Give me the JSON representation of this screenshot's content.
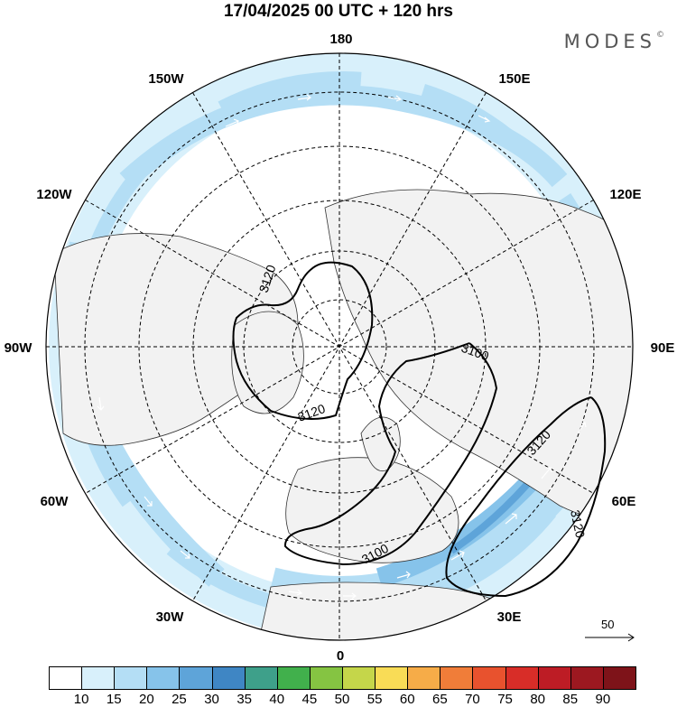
{
  "title": "17/04/2025  00 UTC  + 120 hrs",
  "brand": {
    "name": "MODES",
    "mark": "©"
  },
  "longitude_labels": [
    "180",
    "150E",
    "120E",
    "90E",
    "60E",
    "30E",
    "0",
    "30W",
    "60W",
    "90W",
    "120W",
    "150W"
  ],
  "contour_labels": [
    "3120",
    "3120",
    "3100",
    "3100",
    "3120",
    "3120"
  ],
  "vector_reference": {
    "value": "50"
  },
  "legend": {
    "ticks": [
      "10",
      "15",
      "20",
      "25",
      "30",
      "35",
      "40",
      "45",
      "50",
      "55",
      "60",
      "65",
      "70",
      "75",
      "80",
      "85",
      "90"
    ],
    "colors": [
      "#ffffff",
      "#d8f0fb",
      "#b4def5",
      "#86c3ea",
      "#5ea4d9",
      "#3f86c4",
      "#3ea08a",
      "#41b04c",
      "#85c442",
      "#c5d64a",
      "#f9dc56",
      "#f6ac48",
      "#f07d39",
      "#e8522e",
      "#d82d28",
      "#bd1c25",
      "#9c1820",
      "#7e1319"
    ]
  },
  "colors": {
    "land": "#f2f2f2",
    "jet_light": "#d8f0fb",
    "jet_mid": "#b4def5",
    "jet_strong": "#86c3ea",
    "jet_core": "#5ea4d9"
  }
}
